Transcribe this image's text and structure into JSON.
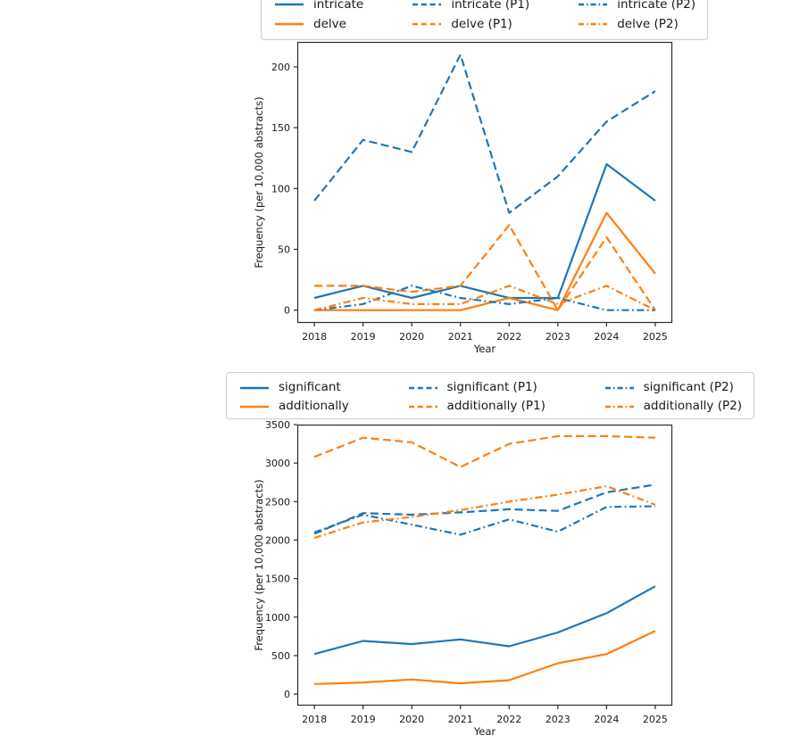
{
  "colors": {
    "blue": "#1f77b4",
    "orange": "#ff7f0e",
    "text": "#1a1a1a",
    "spine": "#2b2b2b",
    "legend_border": "#cccccc",
    "background": "#ffffff"
  },
  "chart_data": [
    {
      "type": "line",
      "title": "",
      "xlabel": "Year",
      "ylabel": "Frequency (per 10,000 abstracts)",
      "x": [
        2018,
        2019,
        2020,
        2021,
        2022,
        2023,
        2024,
        2025
      ],
      "xticklabels": [
        "2018",
        "2019",
        "2020",
        "2021",
        "2022",
        "2023",
        "2024",
        "2025"
      ],
      "xlim": [
        2017.65,
        2025.35
      ],
      "ylim": [
        -10.5,
        220.5
      ],
      "yticks": [
        0,
        50,
        100,
        150,
        200
      ],
      "grid": false,
      "legend_position": "above-top-center",
      "legend_ncols": 3,
      "series": [
        {
          "name": "intricate",
          "color": "#1f77b4",
          "style": "solid",
          "values": [
            10,
            20,
            10,
            20,
            10,
            10,
            120,
            90
          ]
        },
        {
          "name": "delve",
          "color": "#ff7f0e",
          "style": "solid",
          "values": [
            0,
            0,
            0,
            0,
            10,
            0,
            80,
            30
          ]
        },
        {
          "name": "intricate (P1)",
          "color": "#1f77b4",
          "style": "dashed",
          "values": [
            90,
            140,
            130,
            210,
            80,
            110,
            155,
            180
          ]
        },
        {
          "name": "delve (P1)",
          "color": "#ff7f0e",
          "style": "dashed",
          "values": [
            20,
            20,
            15,
            20,
            70,
            0,
            60,
            0
          ]
        },
        {
          "name": "intricate (P2)",
          "color": "#1f77b4",
          "style": "dashdot",
          "values": [
            0,
            5,
            20,
            10,
            5,
            10,
            0,
            0
          ]
        },
        {
          "name": "delve (P2)",
          "color": "#ff7f0e",
          "style": "dashdot",
          "values": [
            0,
            10,
            5,
            5,
            20,
            5,
            20,
            0
          ]
        }
      ]
    },
    {
      "type": "line",
      "title": "",
      "xlabel": "Year",
      "ylabel": "Frequency (per 10,000 abstracts)",
      "x": [
        2018,
        2019,
        2020,
        2021,
        2022,
        2023,
        2024,
        2025
      ],
      "xticklabels": [
        "2018",
        "2019",
        "2020",
        "2021",
        "2022",
        "2023",
        "2024",
        "2025"
      ],
      "xlim": [
        2017.65,
        2025.35
      ],
      "ylim": [
        -150,
        3500
      ],
      "yticks": [
        0,
        500,
        1000,
        1500,
        2000,
        2500,
        3000,
        3500
      ],
      "grid": false,
      "legend_position": "above-top-center",
      "legend_ncols": 3,
      "series": [
        {
          "name": "significant",
          "color": "#1f77b4",
          "style": "solid",
          "values": [
            520,
            690,
            650,
            710,
            620,
            800,
            1050,
            1400
          ]
        },
        {
          "name": "additionally",
          "color": "#ff7f0e",
          "style": "solid",
          "values": [
            130,
            150,
            190,
            140,
            180,
            400,
            520,
            820
          ]
        },
        {
          "name": "significant (P1)",
          "color": "#1f77b4",
          "style": "dashed",
          "values": [
            2080,
            2350,
            2330,
            2360,
            2400,
            2380,
            2620,
            2720
          ]
        },
        {
          "name": "additionally (P1)",
          "color": "#ff7f0e",
          "style": "dashed",
          "values": [
            3080,
            3330,
            3270,
            2950,
            3250,
            3350,
            3350,
            3330
          ]
        },
        {
          "name": "significant (P2)",
          "color": "#1f77b4",
          "style": "dashdot",
          "values": [
            2100,
            2330,
            2200,
            2070,
            2270,
            2110,
            2430,
            2440
          ]
        },
        {
          "name": "additionally (P2)",
          "color": "#ff7f0e",
          "style": "dashdot",
          "values": [
            2030,
            2230,
            2300,
            2390,
            2500,
            2590,
            2700,
            2460
          ]
        }
      ]
    }
  ]
}
